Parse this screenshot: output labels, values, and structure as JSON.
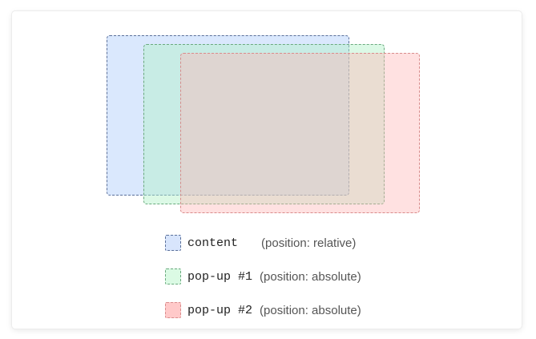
{
  "layers": {
    "content": {
      "fill": "rgba(173,203,250,0.45)",
      "border": "#5a6f99"
    },
    "popup1": {
      "fill": "rgba(178,242,200,0.45)",
      "border": "#6aa97e"
    },
    "popup2": {
      "fill": "rgba(255,180,180,0.40)",
      "border": "#d98b8b"
    }
  },
  "legend": [
    {
      "code": "content",
      "desc": "(position: relative)",
      "color": "#d8e5fc",
      "border": "#5a6f99"
    },
    {
      "code": "pop-up #1",
      "desc": "(position: absolute)",
      "color": "#dbfae4",
      "border": "#6aa97e"
    },
    {
      "code": "pop-up #2",
      "desc": "(position: absolute)",
      "color": "#ffc9c9",
      "border": "#d98b8b"
    }
  ]
}
